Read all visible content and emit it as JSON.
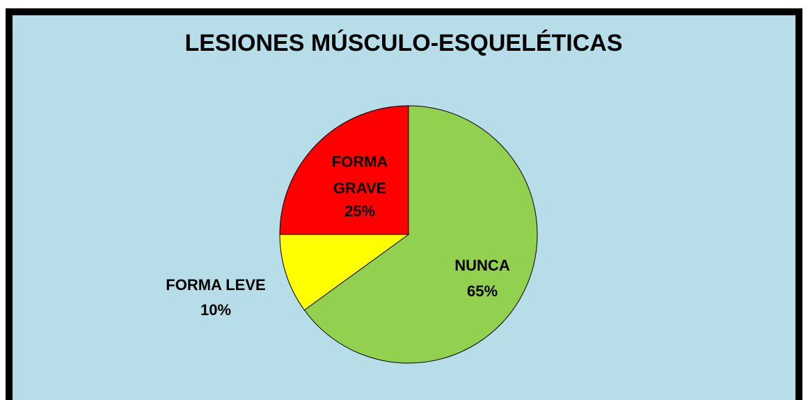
{
  "chart_data": {
    "type": "pie",
    "title": "LESIONES MÚSCULO-ESQUELÉTICAS",
    "categories": [
      "NUNCA",
      "FORMA LEVE",
      "FORMA GRAVE"
    ],
    "values": [
      65,
      10,
      25
    ],
    "value_labels": [
      "65%",
      "10%",
      "25%"
    ],
    "colors": [
      "#92d050",
      "#ffff00",
      "#ff0000"
    ]
  }
}
